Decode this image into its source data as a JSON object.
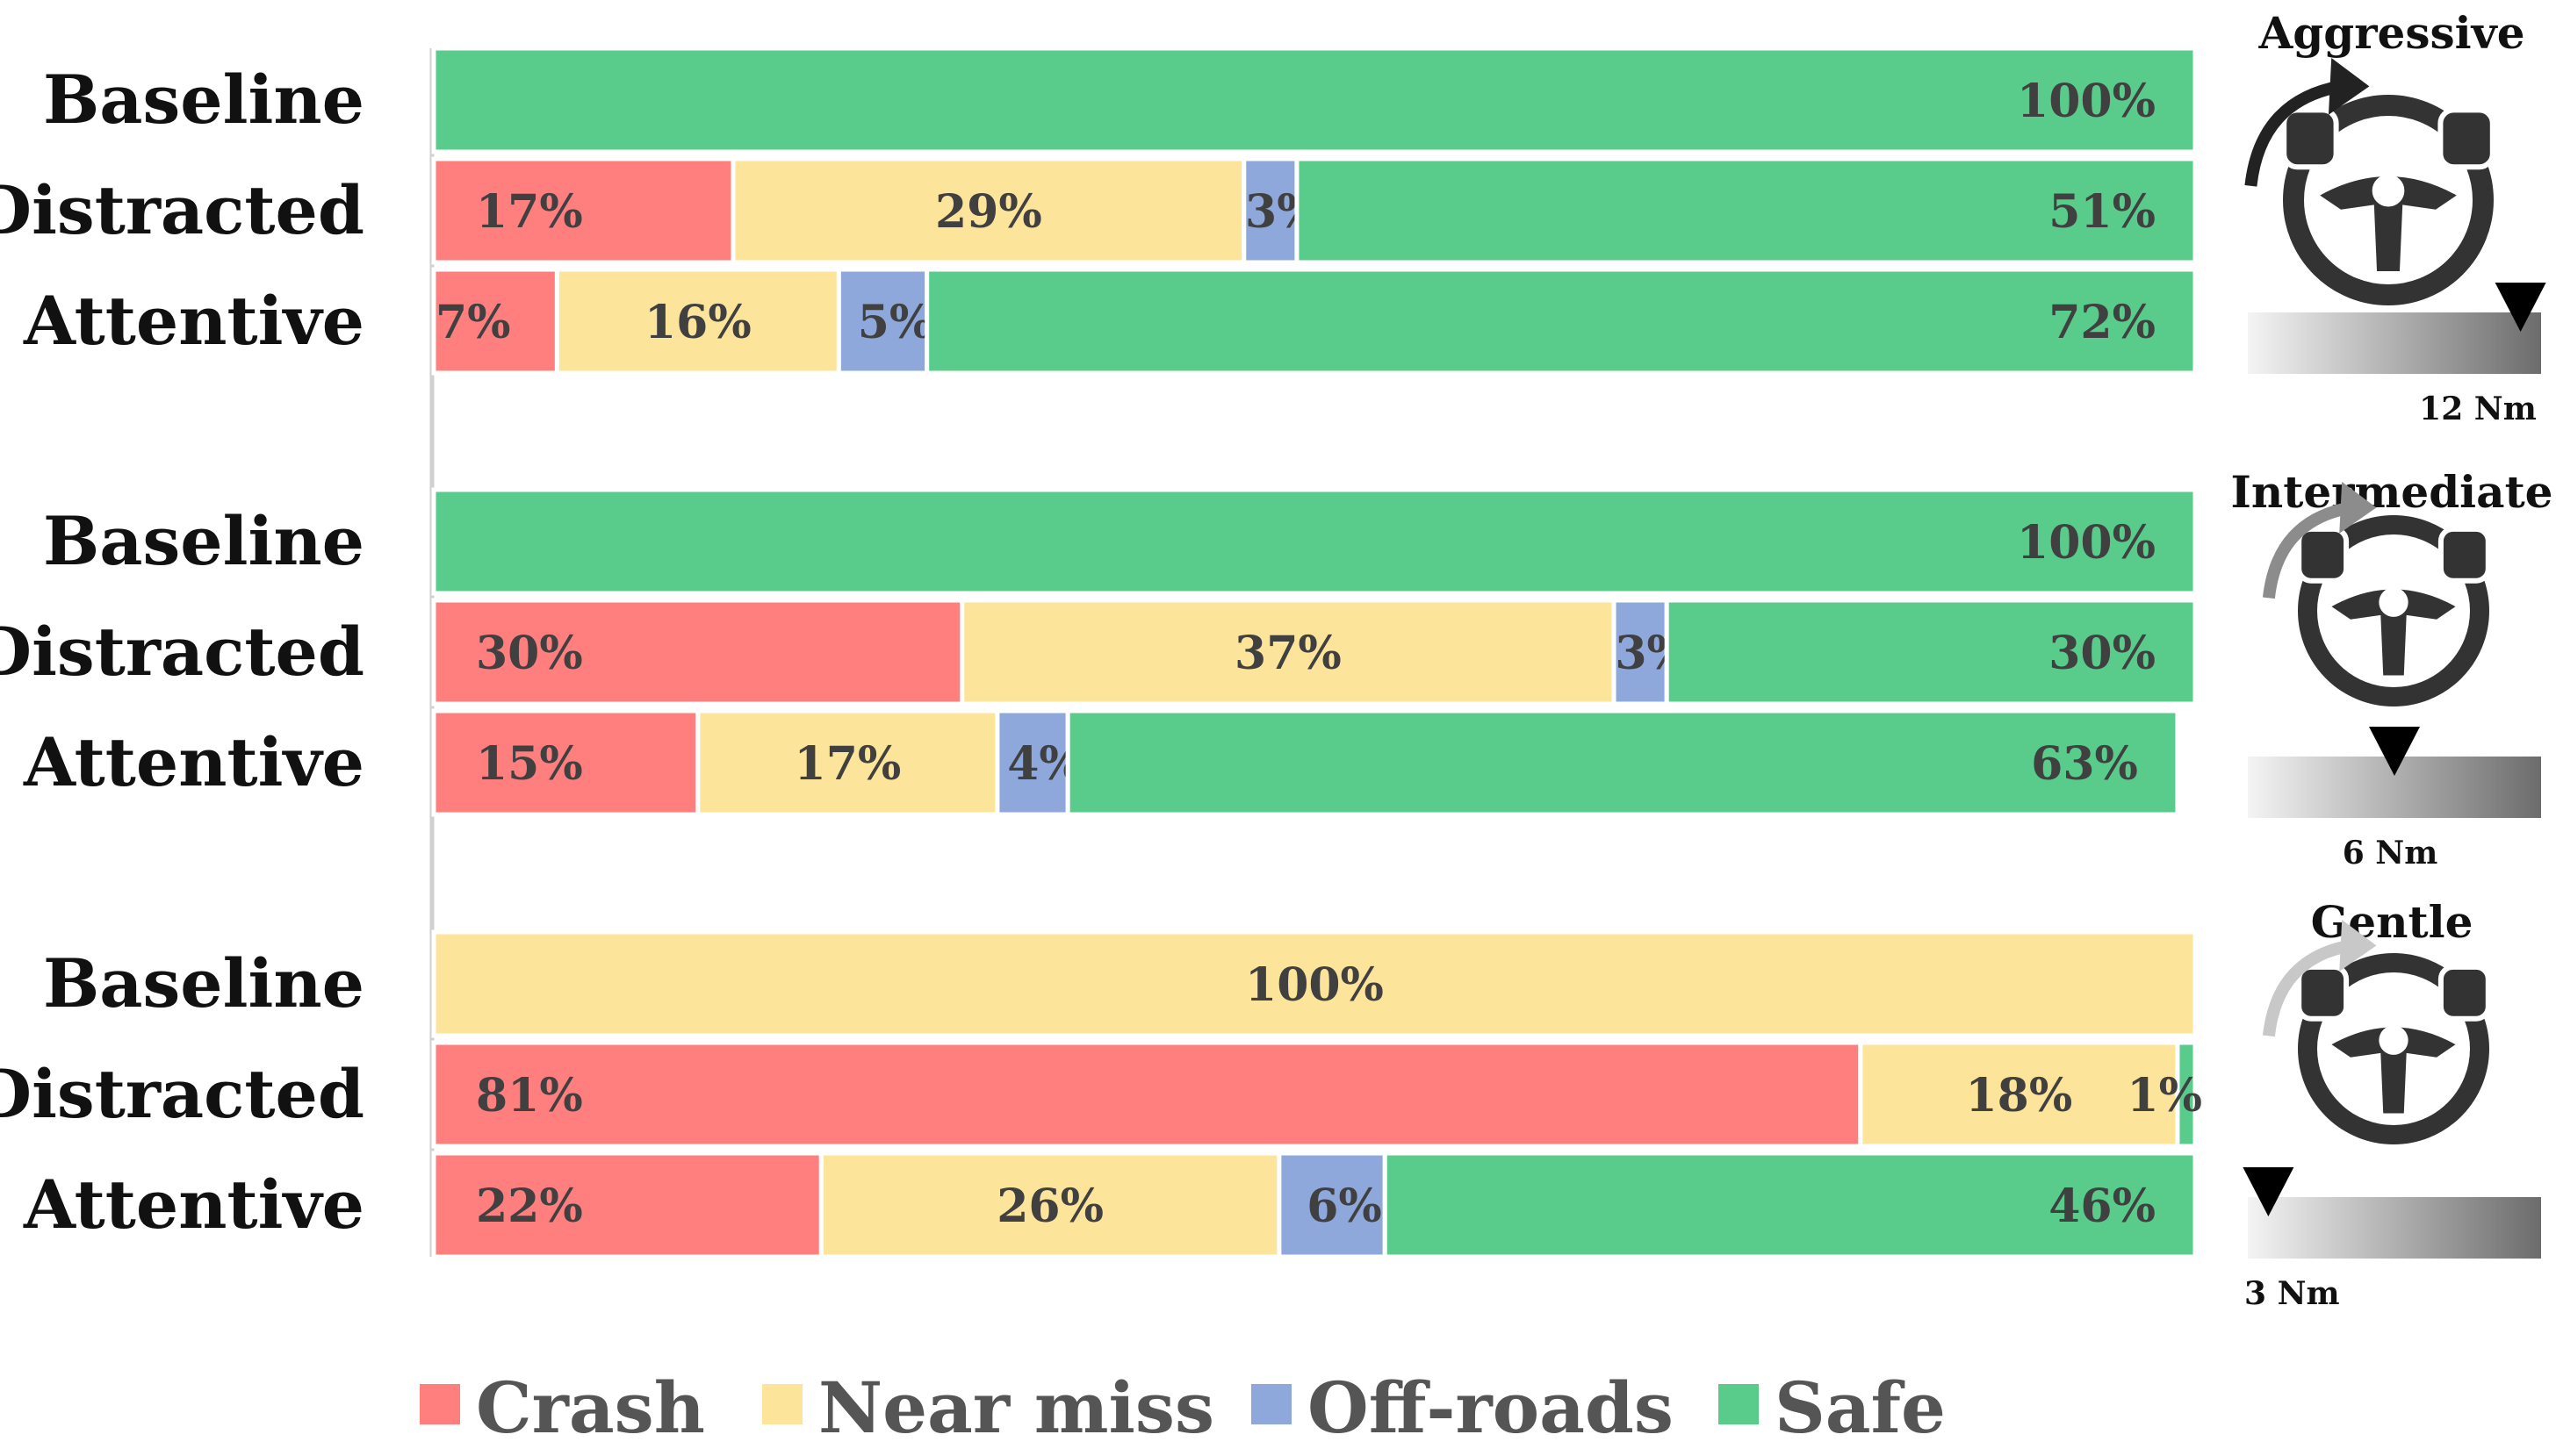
{
  "chart_data": {
    "type": "bar",
    "orientation": "horizontal",
    "stacked": true,
    "xlim": [
      0,
      100
    ],
    "categories": [
      "Crash",
      "Near miss",
      "Off-roads",
      "Safe"
    ],
    "colors": {
      "Crash": "#ff7f7f",
      "Near miss": "#fde49b",
      "Off-roads": "#8fa8dc",
      "Safe": "#59cc8c"
    },
    "groups": [
      {
        "title": "Aggressive",
        "torque": "12 Nm",
        "slider_level": 0.93,
        "arrow_color": "#222222",
        "rows": [
          {
            "label": "Baseline",
            "values": [
              0,
              0,
              0,
              100
            ],
            "texts": [
              "",
              "",
              "",
              "100%"
            ]
          },
          {
            "label": "Distracted",
            "values": [
              17,
              29,
              3,
              51
            ],
            "texts": [
              "17%",
              "29%",
              "3%",
              "51%"
            ]
          },
          {
            "label": "Attentive",
            "values": [
              7,
              16,
              5,
              72
            ],
            "texts": [
              "7%",
              "16%",
              "5%",
              "72%"
            ]
          }
        ]
      },
      {
        "title": "Intermediate",
        "torque": "6 Nm",
        "slider_level": 0.5,
        "arrow_color": "#8c8c8c",
        "rows": [
          {
            "label": "Baseline",
            "values": [
              0,
              0,
              0,
              100
            ],
            "texts": [
              "",
              "",
              "",
              "100%"
            ]
          },
          {
            "label": "Distracted",
            "values": [
              30,
              37,
              3,
              30
            ],
            "texts": [
              "30%",
              "37%",
              "3%",
              "30%"
            ]
          },
          {
            "label": "Attentive",
            "values": [
              15,
              17,
              4,
              63
            ],
            "texts": [
              "15%",
              "17%",
              "4%",
              "63%"
            ]
          }
        ]
      },
      {
        "title": "Gentle",
        "torque": "3 Nm",
        "slider_level": 0.07,
        "arrow_color": "#c8c8c8",
        "rows": [
          {
            "label": "Baseline",
            "values": [
              0,
              100,
              0,
              0
            ],
            "texts": [
              "",
              "100%",
              "",
              ""
            ]
          },
          {
            "label": "Distracted",
            "values": [
              81,
              18,
              0,
              1
            ],
            "texts": [
              "81%",
              "18%",
              "",
              "1%"
            ]
          },
          {
            "label": "Attentive",
            "values": [
              22,
              26,
              6,
              46
            ],
            "texts": [
              "22%",
              "26%",
              "6%",
              "46%"
            ]
          }
        ]
      }
    ],
    "legend": [
      "Crash",
      "Near miss",
      "Off-roads",
      "Safe"
    ],
    "legend_position": "bottom"
  }
}
